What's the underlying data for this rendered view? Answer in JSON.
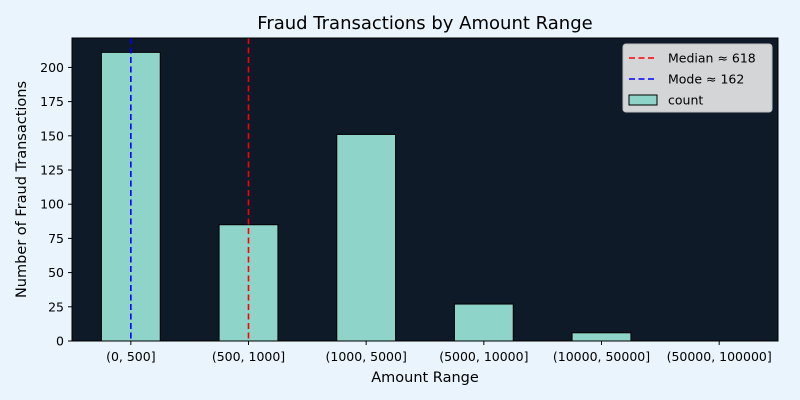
{
  "chart_data": {
    "type": "bar",
    "title": "Fraud Transactions by Amount Range",
    "xlabel": "Amount Range",
    "ylabel": "Number of Fraud Transactions",
    "categories": [
      "(0, 500]",
      "(500, 1000]",
      "(1000, 5000]",
      "(5000, 10000]",
      "(10000, 50000]",
      "(50000, 100000]"
    ],
    "series": [
      {
        "name": "count",
        "values": [
          211,
          85,
          151,
          27,
          6,
          0
        ]
      }
    ],
    "ylim": [
      0,
      221.5
    ],
    "yticks": [
      "0",
      "25",
      "50",
      "75",
      "100",
      "125",
      "150",
      "175",
      "200"
    ],
    "reference_lines": [
      {
        "name": "Median ≈ 618",
        "value": 618,
        "color": "#ff0000"
      },
      {
        "name": "Mode ≈ 162",
        "value": 162,
        "color": "#0000ff"
      }
    ],
    "legend_position": "top-right",
    "grid": false,
    "colors": {
      "page_bg": "#eaf4fc",
      "plot_bg": "#0e1a28",
      "bar_fill": "#8fd4c9",
      "bar_edge": "#000000",
      "legend_bg": "#d3d5d6"
    }
  }
}
